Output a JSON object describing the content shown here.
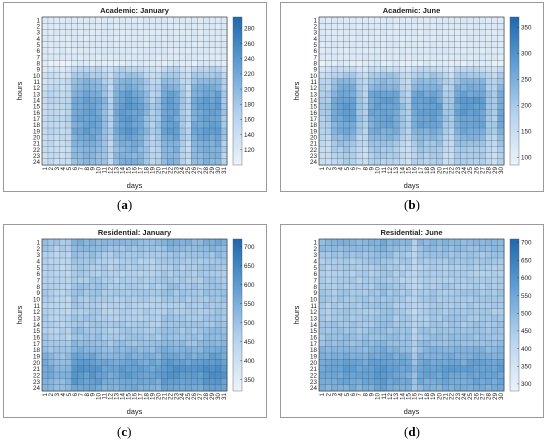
{
  "chart_data": [
    {
      "id": "a",
      "type": "heatmap",
      "title": "Academic: January",
      "xlabel": "days",
      "ylabel": "hours",
      "panel_label": "a",
      "days": 31,
      "hours": 24,
      "colorbar": {
        "min": 100,
        "max": 295,
        "ticks": [
          120,
          140,
          160,
          180,
          200,
          220,
          240,
          260,
          280
        ]
      },
      "daily_level": [
        0.35,
        0.42,
        0.4,
        0.38,
        0.45,
        0.85,
        0.9,
        0.95,
        0.92,
        0.88,
        0.7,
        0.5,
        0.85,
        0.95,
        0.98,
        0.95,
        0.9,
        0.72,
        0.52,
        0.6,
        0.88,
        0.95,
        0.92,
        0.6,
        0.45,
        0.85,
        0.9,
        0.95,
        0.93,
        0.95,
        0.6
      ],
      "hourly_profile": [
        0.05,
        0.05,
        0.05,
        0.05,
        0.05,
        0.05,
        0.05,
        0.1,
        0.35,
        0.45,
        0.55,
        0.62,
        0.68,
        0.72,
        0.72,
        0.7,
        0.7,
        0.7,
        0.72,
        0.68,
        0.62,
        0.6,
        0.58,
        0.58
      ]
    },
    {
      "id": "b",
      "type": "heatmap",
      "title": "Academic: June",
      "xlabel": "days",
      "ylabel": "hours",
      "panel_label": "b",
      "days": 30,
      "hours": 24,
      "colorbar": {
        "min": 85,
        "max": 370,
        "ticks": [
          100,
          150,
          200,
          250,
          300,
          350
        ]
      },
      "daily_level": [
        0.55,
        0.55,
        0.8,
        0.9,
        0.92,
        0.9,
        0.6,
        0.5,
        0.85,
        0.92,
        0.9,
        0.92,
        0.88,
        0.6,
        0.5,
        0.85,
        0.92,
        0.9,
        0.92,
        0.88,
        0.6,
        0.55,
        0.88,
        0.95,
        0.92,
        0.95,
        0.92,
        0.62,
        0.55,
        0.85
      ],
      "hourly_profile": [
        0.05,
        0.05,
        0.05,
        0.05,
        0.05,
        0.05,
        0.05,
        0.1,
        0.3,
        0.45,
        0.55,
        0.62,
        0.7,
        0.74,
        0.74,
        0.72,
        0.72,
        0.7,
        0.65,
        0.58,
        0.5,
        0.45,
        0.42,
        0.4
      ]
    },
    {
      "id": "c",
      "type": "heatmap",
      "title": "Residential: January",
      "xlabel": "days",
      "ylabel": "hours",
      "panel_label": "c",
      "days": 31,
      "hours": 24,
      "colorbar": {
        "min": 320,
        "max": 720,
        "ticks": [
          350,
          400,
          450,
          500,
          550,
          600,
          650,
          700
        ]
      },
      "daily_level": [
        0.7,
        0.65,
        0.6,
        0.6,
        0.62,
        0.82,
        0.8,
        0.78,
        0.8,
        0.78,
        0.72,
        0.7,
        0.72,
        0.74,
        0.76,
        0.74,
        0.72,
        0.72,
        0.7,
        0.72,
        0.8,
        0.82,
        0.8,
        0.78,
        0.76,
        0.76,
        0.78,
        0.82,
        0.84,
        0.86,
        0.8
      ],
      "hourly_profile": [
        0.7,
        0.62,
        0.56,
        0.52,
        0.5,
        0.5,
        0.52,
        0.55,
        0.55,
        0.52,
        0.5,
        0.5,
        0.52,
        0.54,
        0.56,
        0.58,
        0.62,
        0.7,
        0.78,
        0.86,
        0.92,
        0.9,
        0.86,
        0.8
      ]
    },
    {
      "id": "d",
      "type": "heatmap",
      "title": "Residential: June",
      "xlabel": "days",
      "ylabel": "hours",
      "panel_label": "d",
      "days": 30,
      "hours": 24,
      "colorbar": {
        "min": 280,
        "max": 710,
        "ticks": [
          300,
          350,
          400,
          450,
          500,
          550,
          600,
          650,
          700
        ]
      },
      "daily_level": [
        0.72,
        0.7,
        0.72,
        0.74,
        0.76,
        0.74,
        0.72,
        0.74,
        0.76,
        0.8,
        0.82,
        0.78,
        0.74,
        0.72,
        0.7,
        0.55,
        0.7,
        0.72,
        0.74,
        0.72,
        0.74,
        0.76,
        0.74,
        0.72,
        0.74,
        0.76,
        0.74,
        0.72,
        0.74,
        0.76
      ],
      "hourly_profile": [
        0.72,
        0.66,
        0.6,
        0.56,
        0.52,
        0.52,
        0.52,
        0.54,
        0.56,
        0.56,
        0.55,
        0.55,
        0.56,
        0.58,
        0.6,
        0.62,
        0.66,
        0.72,
        0.8,
        0.86,
        0.9,
        0.88,
        0.84,
        0.78
      ]
    }
  ]
}
